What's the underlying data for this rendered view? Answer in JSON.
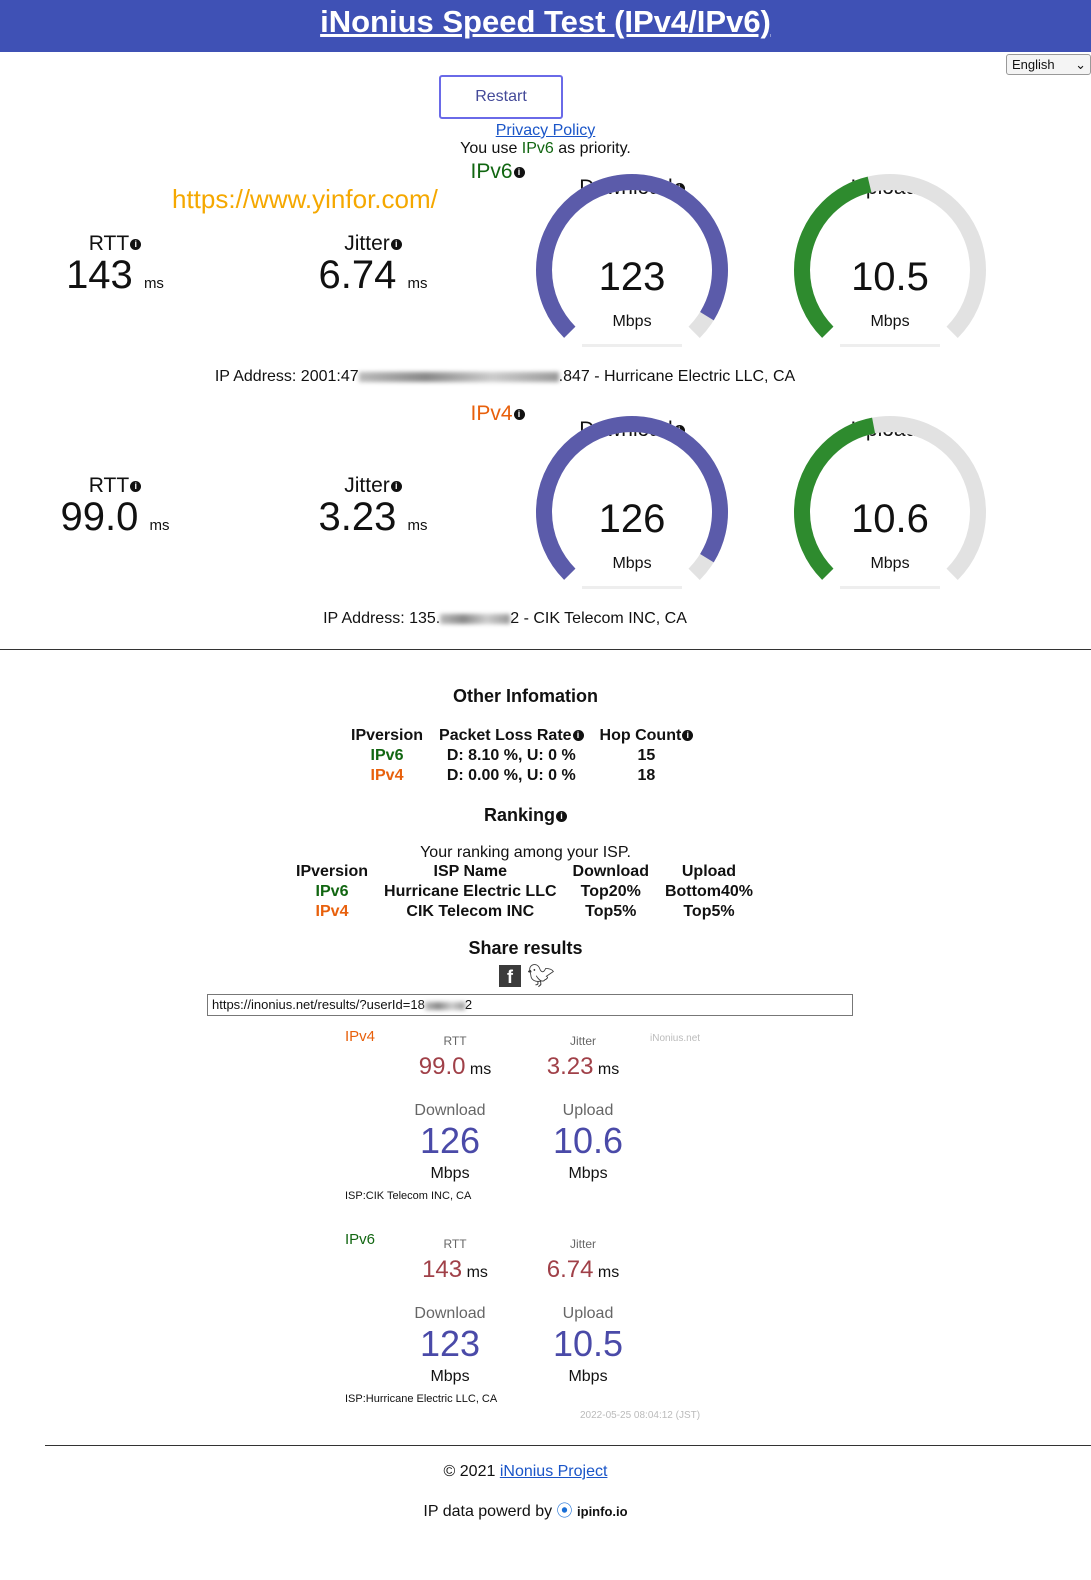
{
  "header": {
    "title": "iNonius Speed Test (IPv4/IPv6)"
  },
  "language": "English",
  "restart_label": "Restart",
  "privacy_label": "Privacy Policy",
  "priority": {
    "pre": "You use ",
    "ver": "IPv6",
    "post": " as priority."
  },
  "watermark": "https://www.yinfor.com/",
  "colors": {
    "header": "#3f51b5",
    "download_gauge": "#5b5baa",
    "upload_gauge": "#2e8b2e",
    "ipv6": "#116611",
    "ipv4": "#e8600c"
  },
  "ipv6": {
    "title": "IPv6",
    "rtt_label": "RTT",
    "rtt": "143",
    "jitter_label": "Jitter",
    "jitter": "6.74",
    "unit_ms": "ms",
    "download_label": "Download",
    "download": "123",
    "upload_label": "Upload",
    "upload": "10.5",
    "unit": "Mbps",
    "download_fill": 0.95,
    "upload_fill": 0.45,
    "ip_pre": "IP Address: 2001:47",
    "ip_post": ".847 - Hurricane Electric LLC, CA"
  },
  "ipv4": {
    "title": "IPv4",
    "rtt_label": "RTT",
    "rtt": "99.0",
    "jitter_label": "Jitter",
    "jitter": "3.23",
    "unit_ms": "ms",
    "download_label": "Download",
    "download": "126",
    "upload_label": "Upload",
    "upload": "10.6",
    "unit": "Mbps",
    "download_fill": 0.95,
    "upload_fill": 0.46,
    "ip_pre": "IP Address: 135.",
    "ip_post": "2 - CIK Telecom INC, CA"
  },
  "other": {
    "title": "Other Infomation",
    "headers": [
      "IPversion",
      "Packet Loss Rate",
      "Hop Count"
    ],
    "rows": [
      [
        "IPv6",
        "D: 8.10 %, U: 0 %",
        "15"
      ],
      [
        "IPv4",
        "D: 0.00 %, U: 0 %",
        "18"
      ]
    ]
  },
  "ranking": {
    "title": "Ranking",
    "subtitle": "Your ranking among your ISP.",
    "headers": [
      "IPversion",
      "ISP Name",
      "Download",
      "Upload"
    ],
    "rows": [
      [
        "IPv6",
        "Hurricane Electric LLC",
        "Top20%",
        "Bottom40%"
      ],
      [
        "IPv4",
        "CIK Telecom INC",
        "Top5%",
        "Top5%"
      ]
    ]
  },
  "share": {
    "title": "Share results",
    "url": "https://inonius.net/results/?userId=18",
    "url_end": "2"
  },
  "card": {
    "brand": "iNonius.net",
    "timestamp": "2022-05-25 08:04:12 (JST)",
    "v4": {
      "title": "IPv4",
      "rtt_label": "RTT",
      "rtt": "99.0",
      "jitter_label": "Jitter",
      "jitter": "3.23",
      "ms": "ms",
      "download_label": "Download",
      "download": "126",
      "upload_label": "Upload",
      "upload": "10.6",
      "unit": "Mbps",
      "isp": "ISP:CIK Telecom INC, CA"
    },
    "v6": {
      "title": "IPv6",
      "rtt_label": "RTT",
      "rtt": "143",
      "jitter_label": "Jitter",
      "jitter": "6.74",
      "ms": "ms",
      "download_label": "Download",
      "download": "123",
      "upload_label": "Upload",
      "upload": "10.5",
      "unit": "Mbps",
      "isp": "ISP:Hurricane Electric LLC, CA"
    }
  },
  "footer": {
    "copyright": "© 2021 ",
    "project": "iNonius Project",
    "powered": "IP data powerd by ",
    "ipinfo": "ipinfo.io"
  }
}
